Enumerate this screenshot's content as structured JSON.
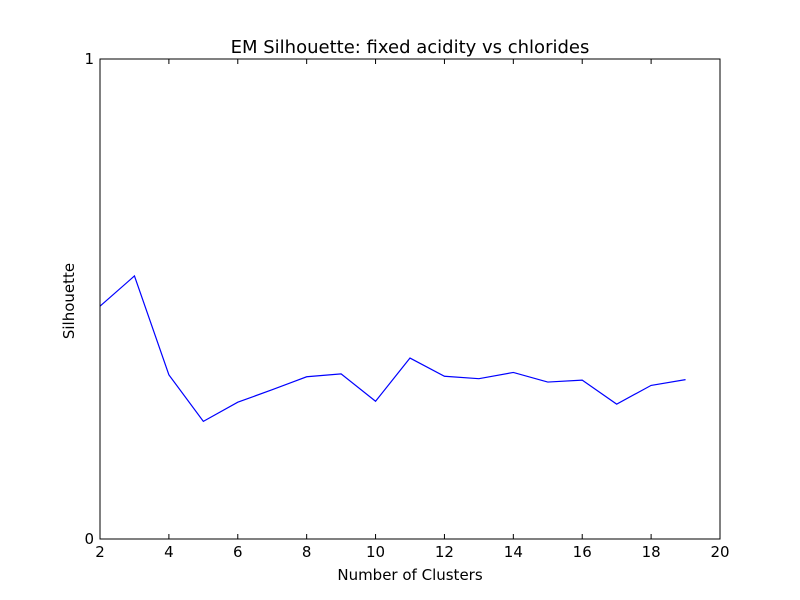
{
  "chart_data": {
    "type": "line",
    "title": "EM Silhouette: fixed acidity vs chlorides",
    "xlabel": "Number of Clusters",
    "ylabel": "Silhouette",
    "xlim": [
      2,
      20
    ],
    "ylim": [
      0,
      1
    ],
    "xticks": [
      2,
      4,
      6,
      8,
      10,
      12,
      14,
      16,
      18,
      20
    ],
    "yticks": [
      0,
      1
    ],
    "grid": false,
    "series": [
      {
        "name": "silhouette",
        "color": "#0000ff",
        "x": [
          2,
          3,
          4,
          5,
          6,
          7,
          8,
          9,
          10,
          11,
          12,
          13,
          14,
          15,
          16,
          17,
          18,
          19
        ],
        "y": [
          0.485,
          0.548,
          0.342,
          0.245,
          0.285,
          0.311,
          0.338,
          0.344,
          0.287,
          0.377,
          0.339,
          0.334,
          0.347,
          0.327,
          0.331,
          0.281,
          0.32,
          0.332
        ]
      }
    ]
  }
}
